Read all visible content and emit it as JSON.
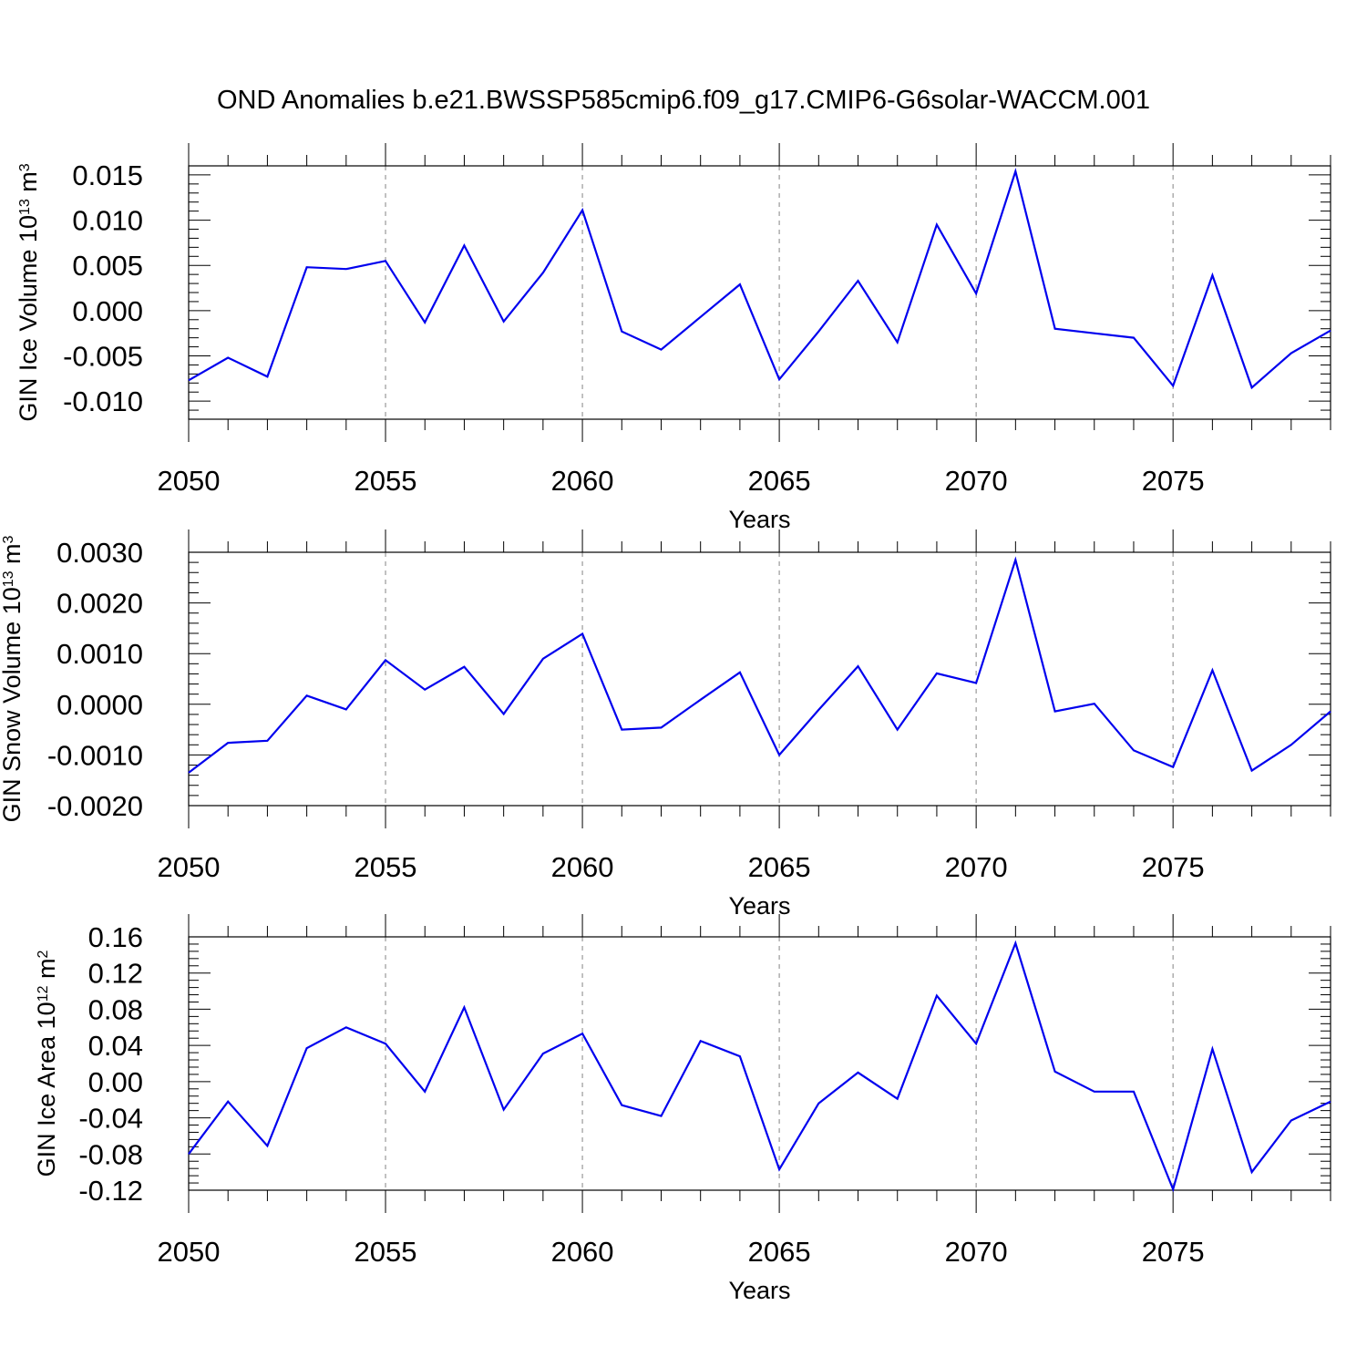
{
  "figure_title": "OND Anomalies b.e21.BWSSP585cmip6.f09_g17.CMIP6-G6solar-WACCM.001",
  "line_color": "#0000ee",
  "chart_data": [
    {
      "type": "line",
      "ylabel": "GIN Ice Volume 10",
      "ylabel_exp": "13",
      "ylabel_unit": "m",
      "ylabel_unit_exp": "3",
      "xlabel": "Years",
      "xlim": [
        2050,
        2079
      ],
      "ylim": [
        -0.012,
        0.016
      ],
      "yticks": [
        -0.01,
        -0.005,
        0.0,
        0.005,
        0.01,
        0.015
      ],
      "ytick_labels": [
        "-0.010",
        "-0.005",
        "0.000",
        "0.005",
        "0.010",
        "0.015"
      ],
      "xticks": [
        2050,
        2055,
        2060,
        2065,
        2070,
        2075
      ],
      "xtick_labels": [
        "2050",
        "2055",
        "2060",
        "2065",
        "2070",
        "2075"
      ],
      "grid_x": [
        2055,
        2060,
        2065,
        2070,
        2075
      ],
      "x": [
        2050,
        2051,
        2052,
        2053,
        2054,
        2055,
        2056,
        2057,
        2058,
        2059,
        2060,
        2061,
        2062,
        2063,
        2064,
        2065,
        2066,
        2067,
        2068,
        2069,
        2070,
        2071,
        2072,
        2073,
        2074,
        2075,
        2076,
        2077,
        2078,
        2079
      ],
      "series": [
        {
          "values": [
            -0.0077,
            -0.0052,
            -0.0073,
            0.0048,
            0.0046,
            0.0055,
            -0.0013,
            0.0072,
            -0.0012,
            0.0042,
            0.0111,
            -0.0023,
            -0.0043,
            -0.0007,
            0.0029,
            -0.0076,
            -0.0023,
            0.0033,
            -0.0035,
            0.0095,
            0.0019,
            0.0154,
            -0.002,
            -0.0025,
            -0.003,
            -0.0083,
            0.0039,
            -0.0085,
            -0.0047,
            -0.0022
          ]
        }
      ]
    },
    {
      "type": "line",
      "ylabel": "GIN Snow Volume 10",
      "ylabel_exp": "13",
      "ylabel_unit": "m",
      "ylabel_unit_exp": "3",
      "xlabel": "Years",
      "xlim": [
        2050,
        2079
      ],
      "ylim": [
        -0.002,
        0.003
      ],
      "yticks": [
        -0.002,
        -0.001,
        0.0,
        0.001,
        0.002,
        0.003
      ],
      "ytick_labels": [
        "-0.0020",
        "-0.0010",
        "0.0000",
        "0.0010",
        "0.0020",
        "0.0030"
      ],
      "xticks": [
        2050,
        2055,
        2060,
        2065,
        2070,
        2075
      ],
      "xtick_labels": [
        "2050",
        "2055",
        "2060",
        "2065",
        "2070",
        "2075"
      ],
      "grid_x": [
        2055,
        2060,
        2065,
        2070,
        2075
      ],
      "x": [
        2050,
        2051,
        2052,
        2053,
        2054,
        2055,
        2056,
        2057,
        2058,
        2059,
        2060,
        2061,
        2062,
        2063,
        2064,
        2065,
        2066,
        2067,
        2068,
        2069,
        2070,
        2071,
        2072,
        2073,
        2074,
        2075,
        2076,
        2077,
        2078,
        2079
      ],
      "series": [
        {
          "values": [
            -0.00135,
            -0.00076,
            -0.00072,
            0.00017,
            -0.0001,
            0.00087,
            0.00029,
            0.00074,
            -0.00019,
            0.0009,
            0.00139,
            -0.0005,
            -0.00046,
            9e-05,
            0.00063,
            -0.001,
            -0.00011,
            0.00075,
            -0.0005,
            0.00061,
            0.00042,
            0.00285,
            -0.00014,
            1e-05,
            -0.00091,
            -0.00124,
            0.00067,
            -0.00131,
            -0.0008,
            -0.00014
          ]
        }
      ]
    },
    {
      "type": "line",
      "ylabel": "GIN Ice Area 10",
      "ylabel_exp": "12",
      "ylabel_unit": "m",
      "ylabel_unit_exp": "2",
      "xlabel": "Years",
      "xlim": [
        2050,
        2079
      ],
      "ylim": [
        -0.12,
        0.16
      ],
      "yticks": [
        -0.12,
        -0.08,
        -0.04,
        0.0,
        0.04,
        0.08,
        0.12,
        0.16
      ],
      "ytick_labels": [
        "-0.12",
        "-0.08",
        "-0.04",
        "0.00",
        "0.04",
        "0.08",
        "0.12",
        "0.16"
      ],
      "xticks": [
        2050,
        2055,
        2060,
        2065,
        2070,
        2075
      ],
      "xtick_labels": [
        "2050",
        "2055",
        "2060",
        "2065",
        "2070",
        "2075"
      ],
      "grid_x": [
        2055,
        2060,
        2065,
        2070,
        2075
      ],
      "x": [
        2050,
        2051,
        2052,
        2053,
        2054,
        2055,
        2056,
        2057,
        2058,
        2059,
        2060,
        2061,
        2062,
        2063,
        2064,
        2065,
        2066,
        2067,
        2068,
        2069,
        2070,
        2071,
        2072,
        2073,
        2074,
        2075,
        2076,
        2077,
        2078,
        2079
      ],
      "series": [
        {
          "values": [
            -0.08,
            -0.022,
            -0.071,
            0.037,
            0.06,
            0.042,
            -0.011,
            0.082,
            -0.031,
            0.031,
            0.053,
            -0.026,
            -0.038,
            0.045,
            0.028,
            -0.097,
            -0.024,
            0.01,
            -0.019,
            0.095,
            0.042,
            0.153,
            0.011,
            -0.011,
            -0.011,
            -0.119,
            0.036,
            -0.1,
            -0.043,
            -0.022
          ]
        }
      ]
    }
  ]
}
